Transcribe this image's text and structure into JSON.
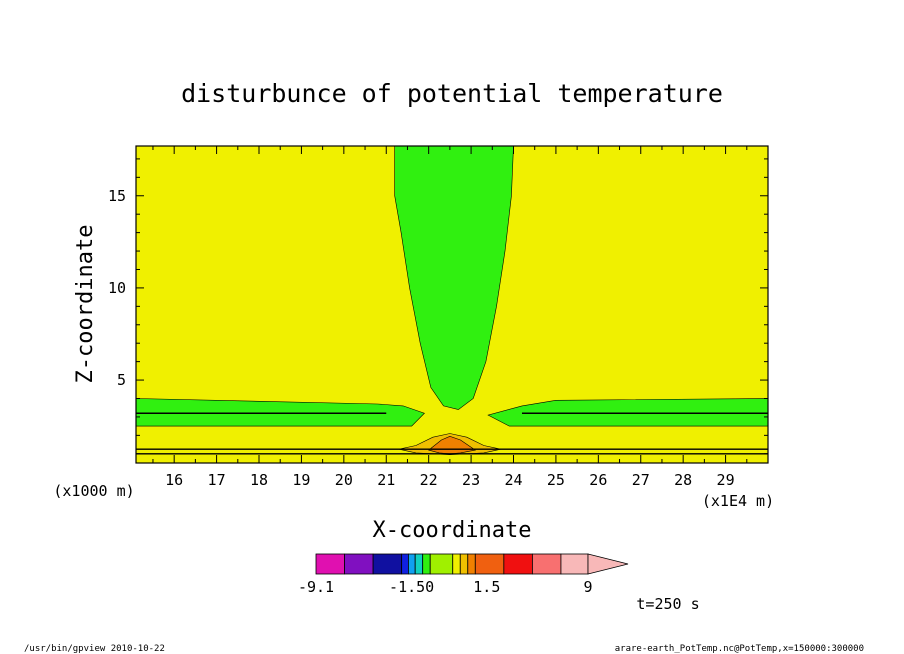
{
  "chart_data": {
    "type": "contour",
    "title": "disturbunce of potential temperature",
    "xlabel": "X-coordinate",
    "ylabel": "Z-coordinate",
    "x_unit": "(x1E4 m)",
    "y_unit": "(x1000 m)",
    "xlim": [
      15.1,
      30.0
    ],
    "ylim": [
      0.5,
      17.7
    ],
    "x_ticks": [
      16,
      17,
      18,
      19,
      20,
      21,
      22,
      23,
      24,
      25,
      26,
      27,
      28,
      29
    ],
    "y_ticks": [
      5,
      10,
      15
    ],
    "background_fill": "#f0f000",
    "colorbar": {
      "labels": [
        {
          "text": "-9.1",
          "value": -9.1
        },
        {
          "text": "-1.50",
          "value": -1.5
        },
        {
          "text": "1.5",
          "value": 1.5
        },
        {
          "text": "9",
          "value": 9
        }
      ],
      "colors": [
        "#e010b0",
        "#8010c0",
        "#1010a0",
        "#1020e0",
        "#10a0f0",
        "#10d0c0",
        "#30f010",
        "#a0f000",
        "#f0f000",
        "#f0c000",
        "#f08000",
        "#f06010",
        "#f01010",
        "#f87070",
        "#f8b8b8"
      ],
      "bands": [
        {
          "lo": -9.1,
          "hi": -7.2
        },
        {
          "lo": -7.2,
          "hi": -5.3
        },
        {
          "lo": -5.3,
          "hi": -3.4
        },
        {
          "lo": -3.4,
          "hi": -2.95
        },
        {
          "lo": -2.95,
          "hi": -2.5
        },
        {
          "lo": -2.5,
          "hi": -2.0
        },
        {
          "lo": -2.0,
          "hi": -1.5
        },
        {
          "lo": -1.5,
          "hi": 0
        },
        {
          "lo": 0,
          "hi": 0.5
        },
        {
          "lo": 0.5,
          "hi": 1.0
        },
        {
          "lo": 1.0,
          "hi": 1.5
        },
        {
          "lo": 1.5,
          "hi": 3.4
        },
        {
          "lo": 3.4,
          "hi": 5.3
        },
        {
          "lo": 5.3,
          "hi": 7.2
        },
        {
          "lo": 7.2,
          "hi": 9.0
        }
      ]
    },
    "contour_regions": [
      {
        "name": "upper plume",
        "color": "#30f010",
        "outline": [
          [
            21.2,
            17.7
          ],
          [
            24.0,
            17.7
          ],
          [
            23.95,
            15
          ],
          [
            23.8,
            12
          ],
          [
            23.6,
            9
          ],
          [
            23.35,
            6
          ],
          [
            23.05,
            4
          ],
          [
            22.7,
            3.4
          ],
          [
            22.35,
            3.6
          ],
          [
            22.05,
            4.6
          ],
          [
            21.8,
            7
          ],
          [
            21.55,
            10
          ],
          [
            21.35,
            13
          ],
          [
            21.2,
            15
          ],
          [
            21.2,
            17.7
          ]
        ]
      },
      {
        "name": "left layer",
        "color": "#30f010",
        "outline": [
          [
            15.1,
            4.0
          ],
          [
            20.8,
            3.7
          ],
          [
            21.4,
            3.6
          ],
          [
            21.9,
            3.2
          ],
          [
            21.6,
            2.5
          ],
          [
            20.8,
            2.5
          ],
          [
            15.1,
            2.5
          ],
          [
            15.1,
            4.0
          ]
        ]
      },
      {
        "name": "right layer",
        "color": "#30f010",
        "outline": [
          [
            24.2,
            3.6
          ],
          [
            25,
            3.9
          ],
          [
            30.0,
            4.0
          ],
          [
            30.0,
            2.5
          ],
          [
            25,
            2.5
          ],
          [
            23.9,
            2.5
          ],
          [
            23.4,
            3.1
          ],
          [
            24.2,
            3.6
          ]
        ]
      },
      {
        "name": "surface warm outer",
        "color": "#f0c000",
        "outline": [
          [
            21.3,
            1.25
          ],
          [
            21.7,
            1.45
          ],
          [
            22.1,
            1.9
          ],
          [
            22.5,
            2.1
          ],
          [
            22.9,
            1.9
          ],
          [
            23.3,
            1.45
          ],
          [
            23.7,
            1.25
          ],
          [
            23.3,
            1.05
          ],
          [
            22.5,
            0.95
          ],
          [
            21.7,
            1.05
          ],
          [
            21.3,
            1.25
          ]
        ]
      },
      {
        "name": "surface warm core",
        "color": "#f08000",
        "outline": [
          [
            22.0,
            1.2
          ],
          [
            22.3,
            1.75
          ],
          [
            22.5,
            1.95
          ],
          [
            22.75,
            1.75
          ],
          [
            23.1,
            1.2
          ],
          [
            22.75,
            1.05
          ],
          [
            22.5,
            1.0
          ],
          [
            22.25,
            1.05
          ],
          [
            22.0,
            1.2
          ]
        ]
      }
    ],
    "contour_lines": [
      {
        "y": 3.2,
        "x": [
          15.1,
          21.0
        ]
      },
      {
        "y": 3.2,
        "x": [
          24.2,
          30.0
        ]
      },
      {
        "y": 1.25,
        "x": [
          15.1,
          30.0
        ]
      },
      {
        "y": 1.0,
        "x": [
          15.1,
          30.0
        ]
      }
    ]
  },
  "annotations": {
    "time": "t=250 s",
    "footer_left": "/usr/bin/gpview   2010-10-22",
    "footer_right": "arare-earth_PotTemp.nc@PotTemp,x=150000:300000"
  }
}
